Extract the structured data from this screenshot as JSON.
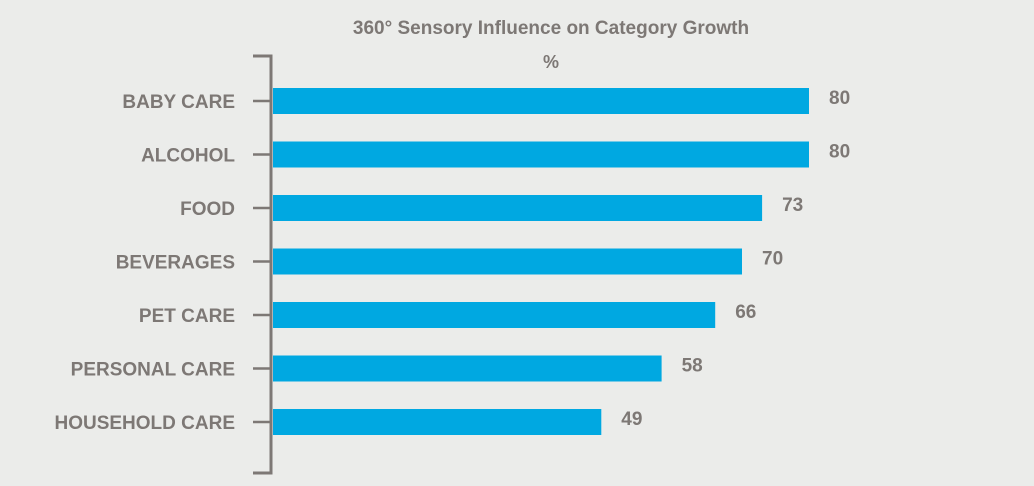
{
  "chart_data": {
    "type": "bar",
    "orientation": "horizontal",
    "title": "360° Sensory Influence on Category Growth",
    "ylabel": "%",
    "xlabel": "",
    "categories": [
      "BABY CARE",
      "ALCOHOL",
      "FOOD",
      "BEVERAGES",
      "PET CARE",
      "PERSONAL CARE",
      "HOUSEHOLD CARE"
    ],
    "values": [
      80,
      80,
      73,
      70,
      66,
      58,
      49
    ],
    "value_labels": [
      "80",
      "80",
      "73",
      "70",
      "66",
      "58",
      "49"
    ],
    "xlim": [
      0,
      100
    ],
    "grid": false,
    "legend": "none"
  },
  "colors": {
    "bar": "#00a8e1",
    "text": "#7d7875",
    "axis": "#7d7875",
    "background": "#ebecea"
  }
}
